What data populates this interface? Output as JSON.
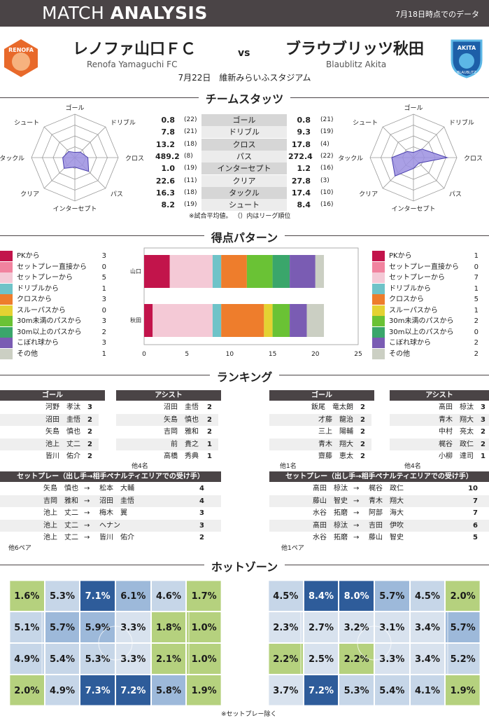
{
  "header": {
    "title_light": "MATCH ",
    "title_bold": "ANALYSIS",
    "as_of": "7月18日時点でのデータ"
  },
  "home": {
    "name": "レノファ山口ＦＣ",
    "name_en": "Renofa Yamaguchi FC",
    "short": "山口",
    "logo_text": "RENOFA",
    "color": "#e8692a"
  },
  "away": {
    "name": "ブラウブリッツ秋田",
    "name_en": "Blaublitz Akita",
    "short": "秋田",
    "logo_text": "AKITA",
    "logo_sub": "BLAUBLITZ",
    "color": "#1d5fa8"
  },
  "vs": "vs",
  "match": {
    "date": "7月22日",
    "venue": "維新みらいふスタジアム"
  },
  "sections": {
    "stats": "チームスタッツ",
    "scoring": "得点パターン",
    "ranking": "ランキング",
    "hotzone": "ホットゾーン"
  },
  "stats": {
    "rows": [
      {
        "label": "ゴール",
        "home": "0.8",
        "home_rank": "(22)",
        "away": "0.8",
        "away_rank": "(21)"
      },
      {
        "label": "ドリブル",
        "home": "7.8",
        "home_rank": "(21)",
        "away": "9.3",
        "away_rank": "(19)"
      },
      {
        "label": "クロス",
        "home": "13.2",
        "home_rank": "(18)",
        "away": "17.8",
        "away_rank": "(4)"
      },
      {
        "label": "パス",
        "home": "489.2",
        "home_rank": "(8)",
        "away": "272.4",
        "away_rank": "(22)"
      },
      {
        "label": "インターセプト",
        "home": "1.0",
        "home_rank": "(19)",
        "away": "1.2",
        "away_rank": "(16)"
      },
      {
        "label": "クリア",
        "home": "22.6",
        "home_rank": "(11)",
        "away": "27.8",
        "away_rank": "(3)"
      },
      {
        "label": "タックル",
        "home": "16.3",
        "home_rank": "(18)",
        "away": "17.4",
        "away_rank": "(10)"
      },
      {
        "label": "シュート",
        "home": "8.2",
        "home_rank": "(19)",
        "away": "8.4",
        "away_rank": "(16)"
      }
    ],
    "note": "※試合平均値。 （）内はリーグ順位",
    "radar_axes": [
      "ゴール",
      "ドリブル",
      "クロス",
      "パス",
      "インターセプト",
      "クリア",
      "タックル",
      "シュート"
    ],
    "radar_home": [
      0.12,
      0.18,
      0.3,
      0.45,
      0.22,
      0.35,
      0.28,
      0.2
    ],
    "radar_away": [
      0.12,
      0.28,
      0.78,
      0.18,
      0.25,
      0.6,
      0.5,
      0.2
    ],
    "radar_fill": "#9b8fe0"
  },
  "chart_data": {
    "type": "bar",
    "orientation": "horizontal-stacked",
    "categories": [
      "山口",
      "秋田"
    ],
    "xlim": [
      0,
      25
    ],
    "xticks": [
      0,
      5,
      10,
      15,
      20,
      25
    ],
    "series": [
      {
        "name": "PKから",
        "color": "#c2144b",
        "values": [
          3,
          1
        ]
      },
      {
        "name": "セットプレー直接から",
        "color": "#f1839f",
        "values": [
          0,
          0
        ]
      },
      {
        "name": "セットプレーから",
        "color": "#f4c9d6",
        "values": [
          5,
          7
        ]
      },
      {
        "name": "ドリブルから",
        "color": "#6fc3c8",
        "values": [
          1,
          1
        ]
      },
      {
        "name": "クロスから",
        "color": "#ee7d2c",
        "values": [
          3,
          5
        ]
      },
      {
        "name": "スルーパスから",
        "color": "#e4d232",
        "values": [
          0,
          1
        ]
      },
      {
        "name": "30m未満のパスから",
        "color": "#6ac235",
        "values": [
          3,
          2
        ]
      },
      {
        "name": "30m以上のパスから",
        "color": "#3aa66b",
        "values": [
          2,
          0
        ]
      },
      {
        "name": "こぼれ球から",
        "color": "#7a5cb3",
        "values": [
          3,
          2
        ]
      },
      {
        "name": "その他",
        "color": "#cbcfc3",
        "values": [
          1,
          2
        ]
      }
    ]
  },
  "ranking": {
    "goal_head": "ゴール",
    "assist_head": "アシスト",
    "home_goals": [
      [
        "河野　孝汰",
        "3"
      ],
      [
        "沼田　圭悟",
        "2"
      ],
      [
        "矢島　慎也",
        "2"
      ],
      [
        "池上　丈二",
        "2"
      ],
      [
        "皆川　佑介",
        "2"
      ]
    ],
    "home_assists": [
      [
        "沼田　圭悟",
        "2"
      ],
      [
        "矢島　慎也",
        "2"
      ],
      [
        "吉岡　雅和",
        "2"
      ],
      [
        "前　貴之",
        "1"
      ],
      [
        "高橋　秀典",
        "1"
      ]
    ],
    "home_assist_more": "他4名",
    "away_goals": [
      [
        "飯尾　竜太朗",
        "2"
      ],
      [
        "才藤　龍治",
        "2"
      ],
      [
        "三上　陽輔",
        "2"
      ],
      [
        "青木　翔大",
        "2"
      ],
      [
        "齋藤　恵太",
        "2"
      ]
    ],
    "away_goals_more": "他1名",
    "away_assists": [
      [
        "髙田　椋汰",
        "3"
      ],
      [
        "青木　翔大",
        "3"
      ],
      [
        "中村　亮太",
        "2"
      ],
      [
        "梶谷　政仁",
        "2"
      ],
      [
        "小柳　達司",
        "1"
      ]
    ],
    "away_assist_more": "他4名",
    "setplay_head": "セットプレー（出し手→相手ペナルティエリアでの受け手）",
    "arrow": "→",
    "home_setplay": [
      [
        "矢島　慎也",
        "松本　大輔",
        "4"
      ],
      [
        "吉岡　雅和",
        "沼田　圭悟",
        "4"
      ],
      [
        "池上　丈二",
        "梅木　翼",
        "3"
      ],
      [
        "池上　丈二",
        "ヘナン",
        "3"
      ],
      [
        "池上　丈二",
        "皆川　佑介",
        "2"
      ]
    ],
    "home_setplay_more": "他6ペア",
    "away_setplay": [
      [
        "髙田　椋汰",
        "梶谷　政仁",
        "10"
      ],
      [
        "藤山　智史",
        "青木　翔大",
        "7"
      ],
      [
        "水谷　拓磨",
        "阿部　海大",
        "7"
      ],
      [
        "髙田　椋汰",
        "吉田　伊吹",
        "6"
      ],
      [
        "水谷　拓磨",
        "藤山　智史",
        "5"
      ]
    ],
    "away_setplay_more": "他1ペア"
  },
  "hotzone": {
    "home": [
      [
        "1.6%",
        "5.3%",
        "7.1%",
        "6.1%",
        "4.6%",
        "1.7%"
      ],
      [
        "5.1%",
        "5.7%",
        "5.9%",
        "3.3%",
        "1.8%",
        "1.0%"
      ],
      [
        "4.9%",
        "5.4%",
        "5.3%",
        "3.3%",
        "2.1%",
        "1.0%"
      ],
      [
        "2.0%",
        "4.9%",
        "7.3%",
        "7.2%",
        "5.8%",
        "1.9%"
      ]
    ],
    "away": [
      [
        "4.5%",
        "8.4%",
        "8.0%",
        "5.7%",
        "4.5%",
        "2.0%"
      ],
      [
        "2.3%",
        "2.7%",
        "3.2%",
        "3.1%",
        "3.4%",
        "5.7%"
      ],
      [
        "2.2%",
        "2.5%",
        "2.2%",
        "3.3%",
        "3.4%",
        "5.2%"
      ],
      [
        "3.7%",
        "7.2%",
        "5.3%",
        "5.4%",
        "4.1%",
        "1.9%"
      ]
    ],
    "note": "※セットプレー除く"
  }
}
